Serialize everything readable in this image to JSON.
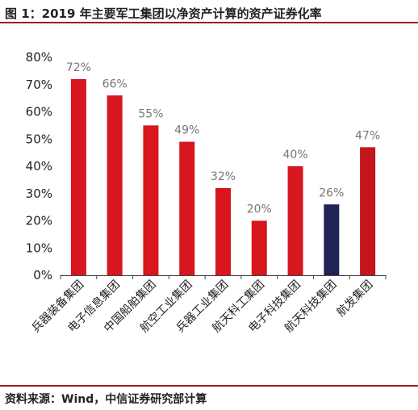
{
  "figure": {
    "title": "图 1：2019 年主要军工集团以净资产计算的资产证券化率",
    "source": "资料来源：Wind，中信证券研究部计算"
  },
  "colors": {
    "bar_red": "#d7161e",
    "bar_navy": "#1f2356",
    "rule": "#9b1e22"
  },
  "chart_data": {
    "type": "bar",
    "title": "图 1：2019 年主要军工集团以净资产计算的资产证券化率",
    "xlabel": "",
    "ylabel": "",
    "categories": [
      "兵器装备集团",
      "电子信息集团",
      "中国船舶集团",
      "航空工业集团",
      "兵器工业集团",
      "航天科工集团",
      "电子科技集团",
      "航天科技集团",
      "航发集团"
    ],
    "values": [
      72,
      66,
      55,
      49,
      32,
      20,
      40,
      26,
      47
    ],
    "data_labels": [
      "72%",
      "66%",
      "55%",
      "49%",
      "32%",
      "20%",
      "40%",
      "26%",
      "47%"
    ],
    "bar_colors": [
      "#d7161e",
      "#d7161e",
      "#d7161e",
      "#d7161e",
      "#d7161e",
      "#d7161e",
      "#d7161e",
      "#1f2356",
      "#c4161c"
    ],
    "ylim": [
      0,
      80
    ],
    "yticks": [
      0,
      10,
      20,
      30,
      40,
      50,
      60,
      70,
      80
    ],
    "ytick_labels": [
      "0%",
      "10%",
      "20%",
      "30%",
      "40%",
      "50%",
      "60%",
      "70%",
      "80%"
    ],
    "grid": false,
    "legend": "none"
  }
}
